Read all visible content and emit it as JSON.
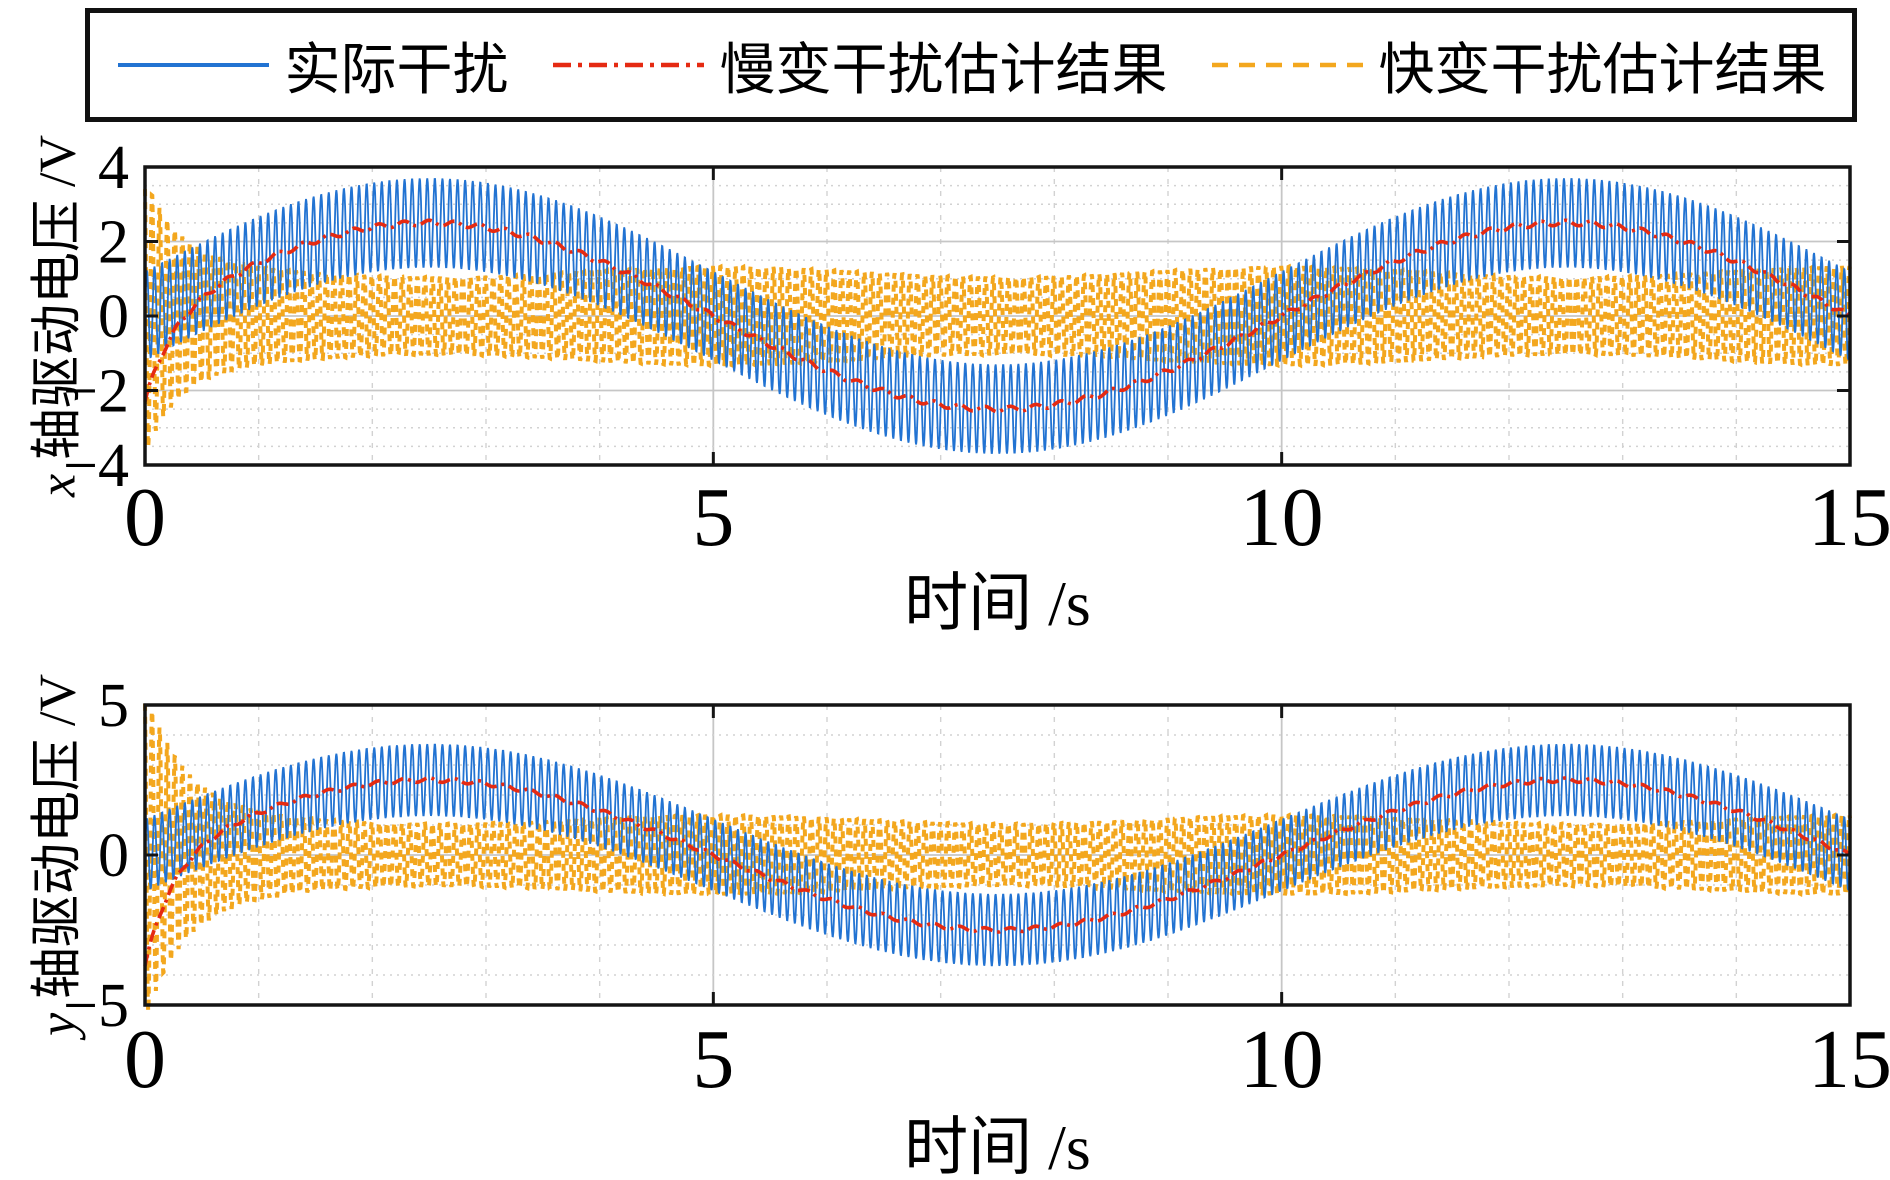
{
  "legend": {
    "items": [
      {
        "label": "实际干扰",
        "color": "#2273D2",
        "style": "solid"
      },
      {
        "label": "慢变干扰估计结果",
        "color": "#E52A12",
        "style": "dashdot"
      },
      {
        "label": "快变干扰估计结果",
        "color": "#F3A71E",
        "style": "dashed"
      }
    ]
  },
  "chart_data": [
    {
      "type": "line",
      "title": "",
      "xlabel": "时间 /s",
      "ylabel_var": "x",
      "ylabel_rest": "轴驱动电压 /V",
      "xlim": [
        0,
        15
      ],
      "ylim": [
        -4,
        4
      ],
      "xticks": [
        0,
        5,
        10,
        15
      ],
      "xticklabels": [
        "0",
        "5",
        "10",
        "15"
      ],
      "yticks": [
        4,
        2,
        0,
        -2,
        -4
      ],
      "yticklabels": [
        "4",
        "2",
        "0",
        "−2",
        "−4"
      ],
      "grid": {
        "on": true,
        "v_minor_step": 1,
        "v_major": [
          5,
          10
        ],
        "h_minor_step": 0.5,
        "h_major_step": 2
      },
      "legend_position": "top",
      "series": [
        {
          "name": "实际干扰",
          "kind": "actual",
          "style": "solid",
          "width": 1.8,
          "slow_amp": 2.5,
          "slow_period": 10,
          "fast_amp": 1.2,
          "fast_freq": 15
        },
        {
          "name": "慢变干扰估计结果",
          "kind": "slow_estimate",
          "style": "dashdot",
          "width": 3.6,
          "slow_amp": 2.5,
          "slow_period": 10,
          "start_value": -2.3,
          "tau": 0.25,
          "ripple": 0.07
        },
        {
          "name": "快变干扰估计结果",
          "kind": "fast_estimate",
          "style": "dashed",
          "width": 4,
          "fast_amp": 1.2,
          "fast_freq": 15,
          "spike_amp": 2.4,
          "spike_tau": 0.3,
          "env_mod": 0.12
        }
      ]
    },
    {
      "type": "line",
      "title": "",
      "xlabel": "时间 /s",
      "ylabel_var": "y",
      "ylabel_rest": "轴驱动电压 /V",
      "xlim": [
        0,
        15
      ],
      "ylim": [
        -5,
        5
      ],
      "xticks": [
        0,
        5,
        10,
        15
      ],
      "xticklabels": [
        "0",
        "5",
        "10",
        "15"
      ],
      "yticks": [
        5,
        0,
        -5
      ],
      "yticklabels": [
        "5",
        "0",
        "−5"
      ],
      "grid": {
        "on": true,
        "v_minor_step": 1,
        "v_major": [
          5,
          10
        ],
        "h_minor_step": 1,
        "h_major_step": 5
      },
      "legend_position": "top",
      "series": [
        {
          "name": "实际干扰",
          "kind": "actual",
          "style": "solid",
          "width": 1.8,
          "slow_amp": 2.5,
          "slow_period": 10,
          "fast_amp": 1.2,
          "fast_freq": 15
        },
        {
          "name": "慢变干扰估计结果",
          "kind": "slow_estimate",
          "style": "dashdot",
          "width": 3.6,
          "slow_amp": 2.5,
          "slow_period": 10,
          "start_value": -3.7,
          "tau": 0.25,
          "ripple": 0.07
        },
        {
          "name": "快变干扰估计结果",
          "kind": "fast_estimate",
          "style": "dashed",
          "width": 4,
          "fast_amp": 1.2,
          "fast_freq": 15,
          "spike_amp": 4.2,
          "spike_tau": 0.35,
          "env_mod": 0.12
        }
      ]
    }
  ]
}
